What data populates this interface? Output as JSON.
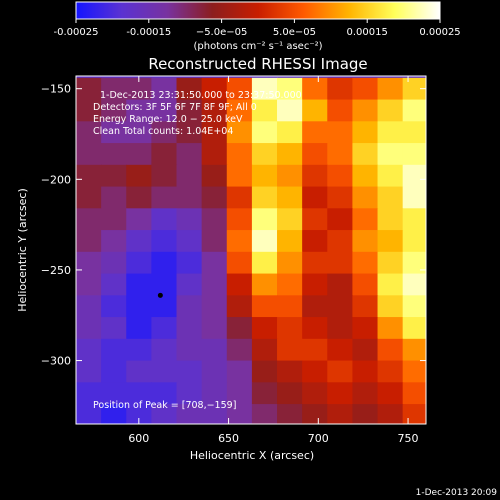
{
  "colorbar": {
    "tick_labels": [
      "-0.00025",
      "-0.00015",
      "−5.0e−05",
      "5.0e−05",
      "0.00015",
      "0.00025"
    ],
    "tick_values": [
      -0.00025,
      -0.00015,
      -5e-05,
      5e-05,
      0.00015,
      0.00025
    ],
    "range": [
      -0.00025,
      0.00025
    ],
    "unit_label": "(photons cm⁻² s⁻¹ asec⁻²)",
    "colormap": [
      "#1414ff",
      "#5a32d2",
      "#7832a0",
      "#8c1e1e",
      "#c81e00",
      "#ff5a00",
      "#ffb400",
      "#ffff5a",
      "#ffffff"
    ]
  },
  "annotations": {
    "time_range": "1-Dec-2013 23:31:50.000 to 23:37:50.000",
    "detectors": "Detectors: 3F 5F 6F 7F 8F 9F; All 0",
    "energy": "Energy Range: 12.0 − 25.0 keV",
    "clean": "Clean    Total counts: 1.04E+04",
    "peak": "Position of Peak = [708,−159]"
  },
  "footer_timestamp": "1-Dec-2013 20:09",
  "chart_data": {
    "type": "heatmap",
    "title": "Reconstructed RHESSI Image",
    "xlabel": "Heliocentric X (arcsec)",
    "ylabel": "Heliocentric Y (arcsec)",
    "xlim": [
      565,
      760
    ],
    "ylim": [
      -335,
      -143
    ],
    "x_ticks": [
      600,
      650,
      700,
      750
    ],
    "x_tick_labels": [
      "600",
      "650",
      "700",
      "750"
    ],
    "y_ticks": [
      -150,
      -200,
      -250,
      -300
    ],
    "y_tick_labels": [
      "−150",
      "−200",
      "−250",
      "−300"
    ],
    "marker": {
      "x": 612,
      "y": -264
    },
    "peak": {
      "x": 708,
      "y": -159
    },
    "grid_x": [
      565,
      579,
      593,
      607,
      621,
      635,
      649,
      663,
      677,
      691,
      705,
      719,
      733,
      747
    ],
    "grid_y": [
      -150,
      -162,
      -174,
      -186,
      -198,
      -210,
      -222,
      -234,
      -246,
      -258,
      -270,
      -282,
      -294,
      -306,
      -318,
      -330
    ],
    "z": [
      [
        -0.3,
        -0.4,
        -0.4,
        -0.5,
        -0.2,
        0.0,
        0.2,
        0.9,
        0.8,
        0.3,
        0.1,
        0.2,
        0.4,
        0.6
      ],
      [
        -0.3,
        -0.4,
        -0.5,
        -0.5,
        -0.3,
        -0.1,
        0.3,
        0.7,
        0.9,
        0.5,
        0.2,
        0.4,
        0.6,
        0.8
      ],
      [
        -0.4,
        -0.5,
        -0.5,
        -0.4,
        -0.3,
        -0.1,
        0.4,
        0.8,
        0.7,
        0.3,
        0.3,
        0.5,
        0.7,
        0.7
      ],
      [
        -0.4,
        -0.4,
        -0.4,
        -0.3,
        -0.4,
        -0.1,
        0.3,
        0.6,
        0.5,
        0.2,
        0.3,
        0.6,
        0.8,
        0.8
      ],
      [
        -0.3,
        -0.3,
        -0.2,
        -0.3,
        -0.4,
        -0.2,
        0.3,
        0.5,
        0.4,
        0.1,
        0.2,
        0.5,
        0.7,
        0.9
      ],
      [
        -0.3,
        -0.4,
        -0.3,
        -0.4,
        -0.4,
        -0.3,
        0.1,
        0.6,
        0.5,
        0.0,
        0.1,
        0.4,
        0.6,
        0.9
      ],
      [
        -0.4,
        -0.4,
        -0.5,
        -0.7,
        -0.6,
        -0.4,
        0.2,
        0.8,
        0.6,
        0.1,
        0.0,
        0.3,
        0.6,
        0.7
      ],
      [
        -0.4,
        -0.5,
        -0.7,
        -0.8,
        -0.7,
        -0.4,
        0.3,
        0.9,
        0.5,
        0.0,
        0.1,
        0.4,
        0.5,
        0.7
      ],
      [
        -0.5,
        -0.6,
        -0.8,
        -0.9,
        -0.8,
        -0.5,
        0.2,
        0.7,
        0.4,
        0.1,
        0.1,
        0.3,
        0.6,
        0.8
      ],
      [
        -0.5,
        -0.7,
        -0.9,
        -0.9,
        -0.7,
        -0.5,
        0.0,
        0.4,
        0.3,
        0.0,
        -0.1,
        0.2,
        0.7,
        0.9
      ],
      [
        -0.6,
        -0.8,
        -0.9,
        -0.9,
        -0.6,
        -0.5,
        -0.1,
        0.2,
        0.2,
        -0.1,
        -0.1,
        0.1,
        0.6,
        0.8
      ],
      [
        -0.6,
        -0.7,
        -0.9,
        -0.8,
        -0.6,
        -0.5,
        -0.3,
        0.0,
        0.1,
        0.0,
        -0.1,
        0.0,
        0.4,
        0.7
      ],
      [
        -0.7,
        -0.8,
        -0.8,
        -0.7,
        -0.6,
        -0.6,
        -0.4,
        -0.1,
        0.1,
        0.1,
        0.0,
        -0.1,
        0.2,
        0.4
      ],
      [
        -0.7,
        -0.8,
        -0.7,
        -0.7,
        -0.7,
        -0.6,
        -0.5,
        -0.2,
        -0.1,
        0.0,
        0.1,
        0.0,
        0.1,
        0.3
      ],
      [
        -0.8,
        -0.8,
        -0.8,
        -0.8,
        -0.7,
        -0.6,
        -0.5,
        -0.3,
        -0.2,
        -0.1,
        0.0,
        -0.1,
        0.0,
        0.2
      ],
      [
        -0.8,
        -0.9,
        -0.8,
        -0.7,
        -0.6,
        -0.6,
        -0.5,
        -0.4,
        -0.3,
        -0.2,
        -0.1,
        -0.2,
        -0.1,
        0.1
      ]
    ]
  }
}
